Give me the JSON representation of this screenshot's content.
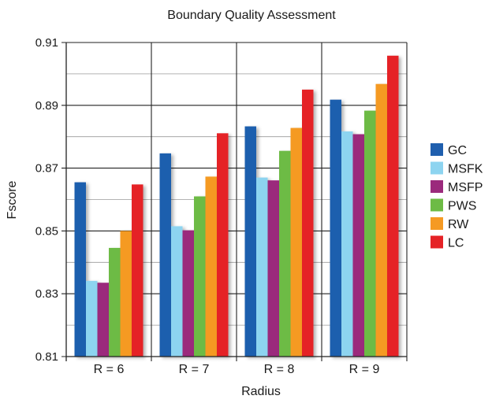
{
  "chart_data": {
    "type": "bar",
    "title": "Boundary Quality Assessment",
    "xlabel": "Radius",
    "ylabel": "Fscore",
    "ylim": [
      0.81,
      0.91
    ],
    "yticks": [
      "0.81",
      "0.83",
      "0.85",
      "0.87",
      "0.89",
      "0.91"
    ],
    "grid": true,
    "legend_position": "right",
    "categories": [
      "R = 6",
      "R = 7",
      "R = 8",
      "R = 9"
    ],
    "series": [
      {
        "name": "GC",
        "color": "#1f5fae",
        "values": [
          0.8655,
          0.8747,
          0.8833,
          0.8918
        ]
      },
      {
        "name": "MSFK",
        "color": "#8dd4f0",
        "values": [
          0.8341,
          0.8515,
          0.867,
          0.8817
        ]
      },
      {
        "name": "MSFP",
        "color": "#9b2a7c",
        "values": [
          0.8335,
          0.8502,
          0.8661,
          0.8808
        ]
      },
      {
        "name": "PWS",
        "color": "#6dbb45",
        "values": [
          0.8446,
          0.861,
          0.8755,
          0.8883
        ]
      },
      {
        "name": "RW",
        "color": "#f59a23",
        "values": [
          0.85,
          0.8673,
          0.8828,
          0.8968
        ]
      },
      {
        "name": "LC",
        "color": "#e52226",
        "values": [
          0.8648,
          0.8811,
          0.895,
          0.9058
        ]
      }
    ]
  }
}
